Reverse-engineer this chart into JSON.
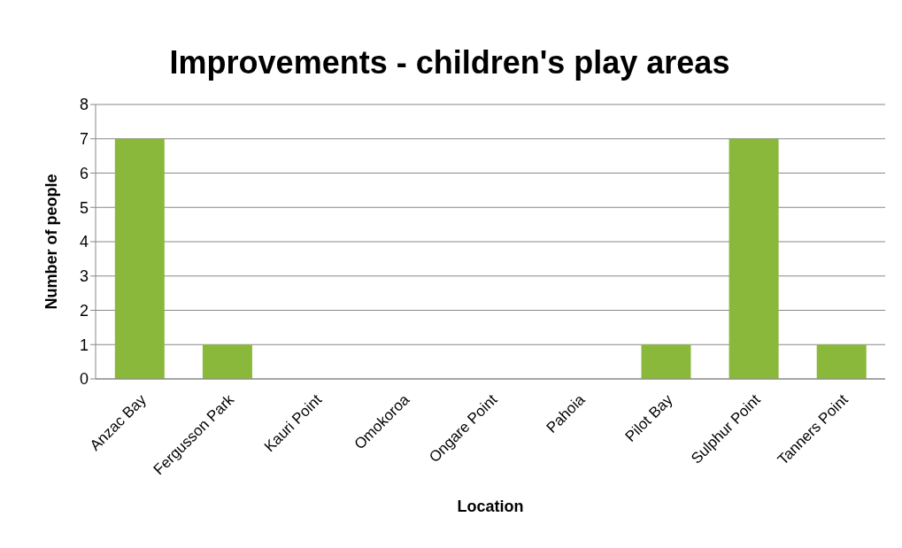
{
  "chart_data": {
    "type": "bar",
    "title": "Improvements - children's play areas",
    "xlabel": "Location",
    "ylabel": "Number of people",
    "categories": [
      "Anzac Bay",
      "Fergusson Park",
      "Kauri Point",
      "Omokoroa",
      "Ongare Point",
      "Pahoia",
      "Pilot Bay",
      "Sulphur Point",
      "Tanners Point"
    ],
    "values": [
      7,
      1,
      0,
      0,
      0,
      0,
      1,
      7,
      1
    ],
    "color": "#8ab83a",
    "ylim": [
      0,
      8
    ],
    "yticks": [
      0,
      1,
      2,
      3,
      4,
      5,
      6,
      7,
      8
    ],
    "grid": "y"
  }
}
